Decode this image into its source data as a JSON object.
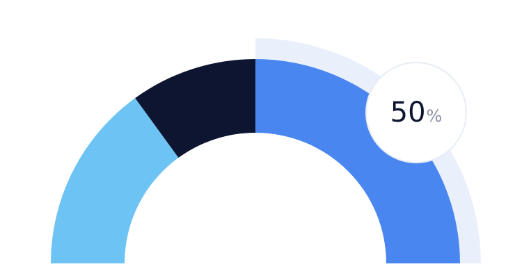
{
  "chart_data": {
    "type": "gauge",
    "value": 50,
    "unit": "%",
    "max": 100,
    "segments": [
      {
        "share": 30,
        "color": "#6ec3f5"
      },
      {
        "share": 20,
        "color": "#0e1530"
      },
      {
        "share": 50,
        "color": "#4a86f0"
      }
    ],
    "highlight_color": "#e9f0fc"
  }
}
